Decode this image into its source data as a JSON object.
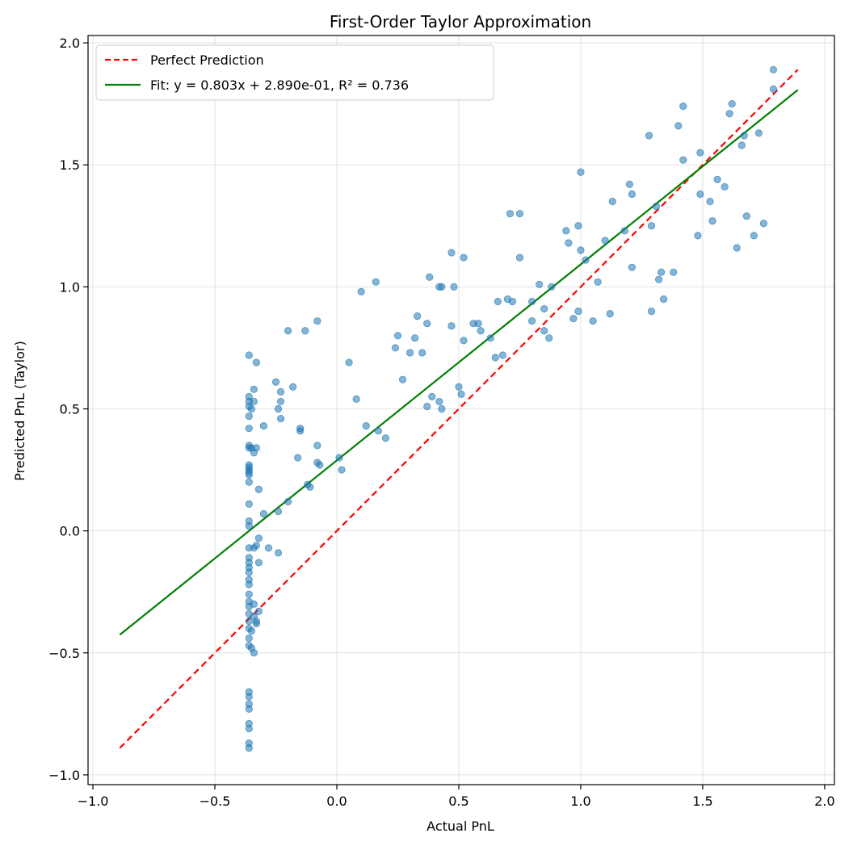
{
  "chart_data": {
    "type": "scatter",
    "title": "First-Order Taylor Approximation",
    "xlabel": "Actual PnL",
    "ylabel": "Predicted PnL (Taylor)",
    "xlim": [
      -1.02,
      2.04
    ],
    "ylim": [
      -1.04,
      2.03
    ],
    "xticks": [
      -1.0,
      -0.5,
      0.0,
      0.5,
      1.0,
      1.5,
      2.0
    ],
    "yticks": [
      -1.0,
      -0.5,
      0.0,
      0.5,
      1.0,
      1.5,
      2.0
    ],
    "grid": true,
    "legend_placement": "top-left",
    "colors": {
      "scatter": "#1f77b4",
      "perfect": "#ff0000",
      "fit": "#008000"
    },
    "lines": [
      {
        "name": "Perfect Prediction",
        "style": "dashed",
        "color": "#ff0000",
        "x": [
          -0.89,
          1.89
        ],
        "y": [
          -0.89,
          1.89
        ]
      },
      {
        "name": "Fit: y = 0.803x + 2.890e-01, R² = 0.736",
        "style": "solid",
        "color": "#008000",
        "x": [
          -0.89,
          1.89
        ],
        "y": [
          -0.426,
          1.807
        ]
      }
    ],
    "points": [
      [
        -0.36,
        0.72
      ],
      [
        -0.36,
        0.55
      ],
      [
        -0.36,
        0.53
      ],
      [
        -0.36,
        0.51
      ],
      [
        -0.36,
        0.47
      ],
      [
        -0.36,
        0.42
      ],
      [
        -0.36,
        0.35
      ],
      [
        -0.36,
        0.34
      ],
      [
        -0.36,
        0.27
      ],
      [
        -0.36,
        0.26
      ],
      [
        -0.36,
        0.25
      ],
      [
        -0.36,
        0.24
      ],
      [
        -0.36,
        0.23
      ],
      [
        -0.36,
        0.2
      ],
      [
        -0.36,
        0.11
      ],
      [
        -0.36,
        0.04
      ],
      [
        -0.36,
        0.02
      ],
      [
        -0.36,
        -0.07
      ],
      [
        -0.36,
        -0.11
      ],
      [
        -0.36,
        -0.13
      ],
      [
        -0.36,
        -0.15
      ],
      [
        -0.36,
        -0.17
      ],
      [
        -0.36,
        -0.2
      ],
      [
        -0.36,
        -0.22
      ],
      [
        -0.36,
        -0.26
      ],
      [
        -0.36,
        -0.29
      ],
      [
        -0.36,
        -0.31
      ],
      [
        -0.36,
        -0.34
      ],
      [
        -0.36,
        -0.37
      ],
      [
        -0.36,
        -0.4
      ],
      [
        -0.36,
        -0.44
      ],
      [
        -0.36,
        -0.47
      ],
      [
        -0.36,
        -0.66
      ],
      [
        -0.36,
        -0.68
      ],
      [
        -0.36,
        -0.71
      ],
      [
        -0.36,
        -0.73
      ],
      [
        -0.36,
        -0.79
      ],
      [
        -0.36,
        -0.81
      ],
      [
        -0.36,
        -0.87
      ],
      [
        -0.36,
        -0.89
      ],
      [
        -0.35,
        0.34
      ],
      [
        -0.35,
        0.5
      ],
      [
        -0.35,
        -0.48
      ],
      [
        -0.35,
        -0.41
      ],
      [
        -0.34,
        0.58
      ],
      [
        -0.34,
        0.53
      ],
      [
        -0.34,
        0.32
      ],
      [
        -0.34,
        -0.07
      ],
      [
        -0.34,
        -0.3
      ],
      [
        -0.34,
        -0.35
      ],
      [
        -0.34,
        -0.5
      ],
      [
        -0.33,
        0.69
      ],
      [
        -0.33,
        0.34
      ],
      [
        -0.33,
        -0.06
      ],
      [
        -0.33,
        -0.38
      ],
      [
        -0.33,
        -0.37
      ],
      [
        -0.32,
        0.17
      ],
      [
        -0.32,
        -0.03
      ],
      [
        -0.32,
        -0.13
      ],
      [
        -0.32,
        -0.33
      ],
      [
        -0.3,
        0.43
      ],
      [
        -0.3,
        0.07
      ],
      [
        -0.28,
        -0.07
      ],
      [
        -0.25,
        0.61
      ],
      [
        -0.24,
        0.5
      ],
      [
        -0.24,
        0.08
      ],
      [
        -0.24,
        -0.09
      ],
      [
        -0.23,
        0.57
      ],
      [
        -0.23,
        0.53
      ],
      [
        -0.23,
        0.46
      ],
      [
        -0.2,
        0.82
      ],
      [
        -0.2,
        0.12
      ],
      [
        -0.18,
        0.59
      ],
      [
        -0.16,
        0.3
      ],
      [
        -0.15,
        0.41
      ],
      [
        -0.15,
        0.42
      ],
      [
        -0.13,
        0.82
      ],
      [
        -0.12,
        0.19
      ],
      [
        -0.11,
        0.18
      ],
      [
        -0.08,
        0.86
      ],
      [
        -0.08,
        0.35
      ],
      [
        -0.08,
        0.28
      ],
      [
        -0.07,
        0.27
      ],
      [
        0.01,
        0.3
      ],
      [
        0.02,
        0.25
      ],
      [
        0.05,
        0.69
      ],
      [
        0.08,
        0.54
      ],
      [
        0.1,
        0.98
      ],
      [
        0.12,
        0.43
      ],
      [
        0.16,
        1.02
      ],
      [
        0.17,
        0.41
      ],
      [
        0.2,
        0.38
      ],
      [
        0.24,
        0.75
      ],
      [
        0.25,
        0.8
      ],
      [
        0.27,
        0.62
      ],
      [
        0.3,
        0.73
      ],
      [
        0.32,
        0.79
      ],
      [
        0.33,
        0.88
      ],
      [
        0.35,
        0.73
      ],
      [
        0.37,
        0.85
      ],
      [
        0.37,
        0.51
      ],
      [
        0.38,
        1.04
      ],
      [
        0.39,
        0.55
      ],
      [
        0.42,
        1.0
      ],
      [
        0.42,
        0.53
      ],
      [
        0.43,
        1.0
      ],
      [
        0.43,
        0.5
      ],
      [
        0.47,
        1.14
      ],
      [
        0.47,
        0.84
      ],
      [
        0.48,
        1.0
      ],
      [
        0.5,
        0.59
      ],
      [
        0.51,
        0.56
      ],
      [
        0.52,
        0.78
      ],
      [
        0.52,
        1.12
      ],
      [
        0.56,
        0.85
      ],
      [
        0.58,
        0.85
      ],
      [
        0.59,
        0.82
      ],
      [
        0.63,
        0.79
      ],
      [
        0.65,
        0.71
      ],
      [
        0.66,
        0.94
      ],
      [
        0.68,
        0.72
      ],
      [
        0.7,
        0.95
      ],
      [
        0.71,
        1.3
      ],
      [
        0.72,
        0.94
      ],
      [
        0.75,
        1.3
      ],
      [
        0.75,
        1.12
      ],
      [
        0.8,
        0.86
      ],
      [
        0.8,
        0.94
      ],
      [
        0.83,
        1.01
      ],
      [
        0.85,
        0.91
      ],
      [
        0.85,
        0.82
      ],
      [
        0.87,
        0.79
      ],
      [
        0.88,
        1.0
      ],
      [
        0.94,
        1.23
      ],
      [
        0.95,
        1.18
      ],
      [
        0.97,
        0.87
      ],
      [
        0.99,
        1.25
      ],
      [
        0.99,
        0.9
      ],
      [
        1.0,
        1.47
      ],
      [
        1.0,
        1.15
      ],
      [
        1.02,
        1.11
      ],
      [
        1.05,
        0.86
      ],
      [
        1.07,
        1.02
      ],
      [
        1.1,
        1.19
      ],
      [
        1.12,
        0.89
      ],
      [
        1.13,
        1.35
      ],
      [
        1.18,
        1.23
      ],
      [
        1.2,
        1.42
      ],
      [
        1.21,
        1.38
      ],
      [
        1.21,
        1.08
      ],
      [
        1.28,
        1.62
      ],
      [
        1.29,
        1.25
      ],
      [
        1.29,
        0.9
      ],
      [
        1.31,
        1.33
      ],
      [
        1.32,
        1.03
      ],
      [
        1.33,
        1.06
      ],
      [
        1.34,
        0.95
      ],
      [
        1.38,
        1.06
      ],
      [
        1.4,
        1.66
      ],
      [
        1.42,
        1.52
      ],
      [
        1.42,
        1.74
      ],
      [
        1.48,
        1.21
      ],
      [
        1.49,
        1.55
      ],
      [
        1.49,
        1.38
      ],
      [
        1.53,
        1.35
      ],
      [
        1.54,
        1.27
      ],
      [
        1.56,
        1.44
      ],
      [
        1.59,
        1.41
      ],
      [
        1.61,
        1.71
      ],
      [
        1.62,
        1.75
      ],
      [
        1.64,
        1.16
      ],
      [
        1.66,
        1.58
      ],
      [
        1.67,
        1.62
      ],
      [
        1.68,
        1.29
      ],
      [
        1.71,
        1.21
      ],
      [
        1.73,
        1.63
      ],
      [
        1.75,
        1.26
      ],
      [
        1.79,
        1.81
      ],
      [
        1.79,
        1.89
      ]
    ]
  }
}
